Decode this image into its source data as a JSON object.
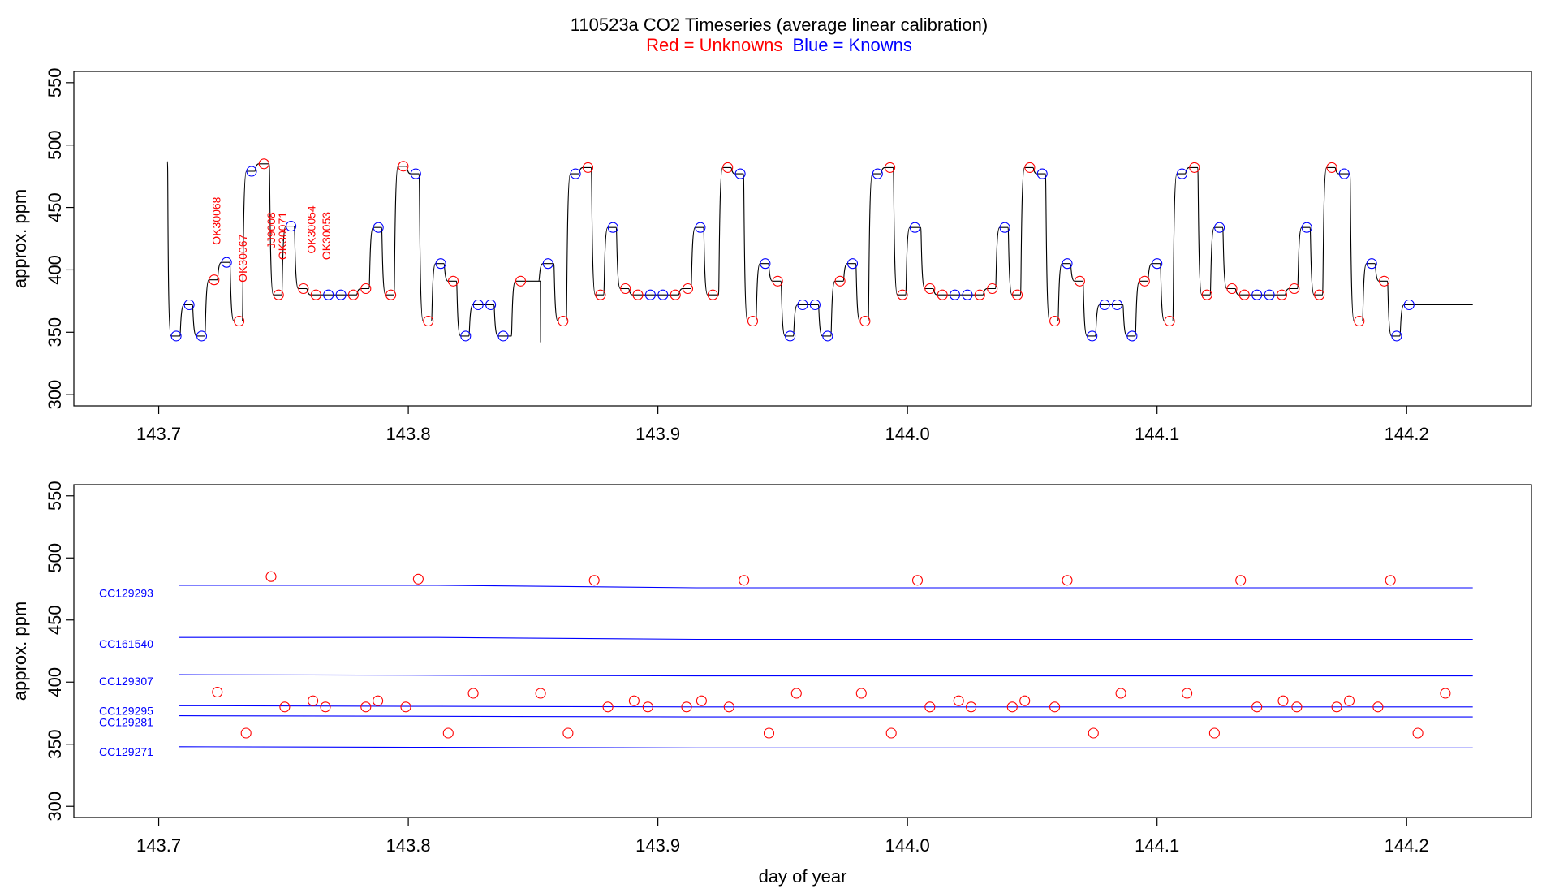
{
  "title": {
    "main": "110523a   CO2 Timeseries (average linear calibration)",
    "red_part": "Red = Unknowns",
    "blue_part": "Blue = Knowns"
  },
  "colors": {
    "unknown": "#ff0000",
    "known": "#0000ff",
    "trace": "#000000",
    "cal_line": "#0000ff"
  },
  "chart_data": [
    {
      "type": "line",
      "panel": "top",
      "ylabel": "approx. ppm",
      "xlabel": "",
      "xlim": [
        143.666,
        144.25
      ],
      "ylim": [
        291,
        559
      ],
      "xticks": [
        143.7,
        143.8,
        143.9,
        144.0,
        144.1,
        144.2
      ],
      "xtick_labels": [
        "143.7",
        "143.8",
        "143.9",
        "144.0",
        "144.1",
        "144.2"
      ],
      "yticks": [
        300,
        350,
        400,
        450,
        500,
        550
      ],
      "ytick_labels": [
        "300",
        "350",
        "400",
        "450",
        "500",
        "550"
      ],
      "trace_start": [
        143.7035,
        487
      ],
      "trace_dip": [
        143.8535,
        342
      ],
      "trace_end": 144.2265,
      "steps": [
        [
          143.7045,
          347,
          "K"
        ],
        [
          143.7097,
          372,
          "K"
        ],
        [
          143.7147,
          347,
          "K"
        ],
        [
          143.7197,
          392,
          "U"
        ],
        [
          143.7247,
          406,
          "K"
        ],
        [
          143.7297,
          359,
          "U"
        ],
        [
          143.7347,
          479,
          "K"
        ],
        [
          143.7397,
          485,
          "U"
        ],
        [
          143.7455,
          380,
          "U"
        ],
        [
          143.7505,
          435,
          "K"
        ],
        [
          143.7555,
          385,
          "U"
        ],
        [
          143.7605,
          380,
          "U"
        ],
        [
          143.7655,
          380,
          "K"
        ],
        [
          143.7705,
          380,
          "K"
        ],
        [
          143.7755,
          380,
          "U"
        ],
        [
          143.7805,
          385,
          "U"
        ],
        [
          143.7855,
          434,
          "K"
        ],
        [
          143.7905,
          380,
          "U"
        ],
        [
          143.7955,
          483,
          "U"
        ],
        [
          143.8005,
          477,
          "K"
        ],
        [
          143.8055,
          359,
          "U"
        ],
        [
          143.8105,
          405,
          "K"
        ],
        [
          143.8155,
          391,
          "U"
        ],
        [
          143.8205,
          347,
          "K"
        ],
        [
          143.8255,
          372,
          "K"
        ],
        [
          143.8305,
          372,
          "K"
        ],
        [
          143.8355,
          347,
          "K"
        ],
        [
          143.8425,
          391,
          "U"
        ],
        [
          143.8535,
          405,
          "K"
        ],
        [
          143.8595,
          359,
          "U"
        ],
        [
          143.8645,
          477,
          "K"
        ],
        [
          143.8695,
          482,
          "U"
        ],
        [
          143.8745,
          380,
          "U"
        ],
        [
          143.8795,
          434,
          "K"
        ],
        [
          143.8845,
          385,
          "U"
        ],
        [
          143.8895,
          380,
          "U"
        ],
        [
          143.8945,
          380,
          "K"
        ],
        [
          143.8995,
          380,
          "K"
        ],
        [
          143.9045,
          380,
          "U"
        ],
        [
          143.9095,
          385,
          "U"
        ],
        [
          143.9145,
          434,
          "K"
        ],
        [
          143.9195,
          380,
          "U"
        ],
        [
          143.9255,
          482,
          "U"
        ],
        [
          143.9305,
          477,
          "K"
        ],
        [
          143.9355,
          359,
          "U"
        ],
        [
          143.9405,
          405,
          "K"
        ],
        [
          143.9455,
          391,
          "U"
        ],
        [
          143.9505,
          347,
          "K"
        ],
        [
          143.9555,
          372,
          "K"
        ],
        [
          143.9605,
          372,
          "K"
        ],
        [
          143.9655,
          347,
          "K"
        ],
        [
          143.9705,
          391,
          "U"
        ],
        [
          143.9755,
          405,
          "K"
        ],
        [
          143.9805,
          359,
          "U"
        ],
        [
          143.9855,
          477,
          "K"
        ],
        [
          143.9905,
          482,
          "U"
        ],
        [
          143.9955,
          380,
          "U"
        ],
        [
          144.0005,
          434,
          "K"
        ],
        [
          144.0065,
          385,
          "U"
        ],
        [
          144.0115,
          380,
          "U"
        ],
        [
          144.0165,
          380,
          "K"
        ],
        [
          144.0215,
          380,
          "K"
        ],
        [
          144.0265,
          380,
          "U"
        ],
        [
          144.0315,
          385,
          "U"
        ],
        [
          144.0365,
          434,
          "K"
        ],
        [
          144.0415,
          380,
          "U"
        ],
        [
          144.0465,
          482,
          "U"
        ],
        [
          144.0515,
          477,
          "K"
        ],
        [
          144.0565,
          359,
          "U"
        ],
        [
          144.0615,
          405,
          "K"
        ],
        [
          144.0665,
          391,
          "U"
        ],
        [
          144.0715,
          347,
          "K"
        ],
        [
          144.0765,
          372,
          "K"
        ],
        [
          144.0815,
          372,
          "K"
        ],
        [
          144.0875,
          347,
          "K"
        ],
        [
          144.0925,
          391,
          "U"
        ],
        [
          144.0975,
          405,
          "K"
        ],
        [
          144.1025,
          359,
          "U"
        ],
        [
          144.1075,
          477,
          "K"
        ],
        [
          144.1125,
          482,
          "U"
        ],
        [
          144.1175,
          380,
          "U"
        ],
        [
          144.1225,
          434,
          "K"
        ],
        [
          144.1275,
          385,
          "U"
        ],
        [
          144.1325,
          380,
          "U"
        ],
        [
          144.1375,
          380,
          "K"
        ],
        [
          144.1425,
          380,
          "K"
        ],
        [
          144.1475,
          380,
          "U"
        ],
        [
          144.1525,
          385,
          "U"
        ],
        [
          144.1575,
          434,
          "K"
        ],
        [
          144.1625,
          380,
          "U"
        ],
        [
          144.1675,
          482,
          "U"
        ],
        [
          144.1725,
          477,
          "K"
        ],
        [
          144.1785,
          359,
          "U"
        ],
        [
          144.1835,
          405,
          "K"
        ],
        [
          144.1885,
          391,
          "U"
        ],
        [
          144.1935,
          347,
          "K"
        ],
        [
          144.1985,
          372,
          "K"
        ]
      ],
      "annotations": [
        {
          "text": "OK30068",
          "x": 143.7247,
          "y": 420
        },
        {
          "text": "OK30067",
          "x": 143.7353,
          "y": 390
        },
        {
          "text": "JJ9008",
          "x": 143.7466,
          "y": 417
        },
        {
          "text": "OK30071",
          "x": 143.7512,
          "y": 408
        },
        {
          "text": "OK30054",
          "x": 143.7628,
          "y": 413
        },
        {
          "text": "OK30053",
          "x": 143.7688,
          "y": 408
        }
      ]
    },
    {
      "type": "scatter",
      "panel": "bottom",
      "ylabel": "approx. ppm",
      "xlabel": "day of year",
      "xlim": [
        143.666,
        144.25
      ],
      "ylim": [
        291,
        559
      ],
      "xticks": [
        143.7,
        143.8,
        143.9,
        144.0,
        144.1,
        144.2
      ],
      "xtick_labels": [
        "143.7",
        "143.8",
        "143.9",
        "144.0",
        "144.1",
        "144.2"
      ],
      "yticks": [
        300,
        350,
        400,
        450,
        500,
        550
      ],
      "ytick_labels": [
        "300",
        "350",
        "400",
        "450",
        "500",
        "550"
      ],
      "cal_lines": [
        {
          "name": "CC129293",
          "label_y": 471,
          "x0": 143.708,
          "x1": 144.2265,
          "y": [
            478,
            478,
            476,
            476,
            476,
            476
          ]
        },
        {
          "name": "CC161540",
          "label_y": 430,
          "x0": 143.708,
          "x1": 144.2265,
          "y": [
            436,
            436,
            434.5,
            434.5,
            434.5,
            434.5
          ]
        },
        {
          "name": "CC129307",
          "label_y": 400,
          "x0": 143.708,
          "x1": 144.2265,
          "y": [
            406,
            405.5,
            405,
            405,
            405,
            405
          ]
        },
        {
          "name": "CC129295",
          "label_y": 376,
          "x0": 143.708,
          "x1": 144.2265,
          "y": [
            381,
            380.5,
            380,
            380,
            380,
            380
          ]
        },
        {
          "name": "CC129281",
          "label_y": 367,
          "x0": 143.708,
          "x1": 144.2265,
          "y": [
            373,
            372.5,
            372,
            372,
            372,
            372
          ]
        },
        {
          "name": "CC129271",
          "label_y": 343,
          "x0": 143.708,
          "x1": 144.2265,
          "y": [
            348,
            347.5,
            347,
            347,
            347,
            347
          ]
        }
      ],
      "unknowns": [
        [
          143.7235,
          392
        ],
        [
          143.735,
          359
        ],
        [
          143.745,
          485
        ],
        [
          143.7505,
          380
        ],
        [
          143.7618,
          385
        ],
        [
          143.7668,
          380
        ],
        [
          143.783,
          380
        ],
        [
          143.7878,
          385
        ],
        [
          143.799,
          380
        ],
        [
          143.804,
          483
        ],
        [
          143.816,
          359
        ],
        [
          143.826,
          391
        ],
        [
          143.853,
          391
        ],
        [
          143.864,
          359
        ],
        [
          143.8745,
          482
        ],
        [
          143.88,
          380
        ],
        [
          143.8905,
          385
        ],
        [
          143.896,
          380
        ],
        [
          143.9115,
          380
        ],
        [
          143.9175,
          385
        ],
        [
          143.9285,
          380
        ],
        [
          143.9345,
          482
        ],
        [
          143.9445,
          359
        ],
        [
          143.9555,
          391
        ],
        [
          143.9815,
          391
        ],
        [
          143.9935,
          359
        ],
        [
          144.004,
          482
        ],
        [
          144.009,
          380
        ],
        [
          144.0205,
          385
        ],
        [
          144.0255,
          380
        ],
        [
          144.042,
          380
        ],
        [
          144.047,
          385
        ],
        [
          144.059,
          380
        ],
        [
          144.064,
          482
        ],
        [
          144.0745,
          359
        ],
        [
          144.0855,
          391
        ],
        [
          144.112,
          391
        ],
        [
          144.123,
          359
        ],
        [
          144.1335,
          482
        ],
        [
          144.14,
          380
        ],
        [
          144.1505,
          385
        ],
        [
          144.156,
          380
        ],
        [
          144.172,
          380
        ],
        [
          144.177,
          385
        ],
        [
          144.1885,
          380
        ],
        [
          144.1935,
          482
        ],
        [
          144.2045,
          359
        ],
        [
          144.2155,
          391
        ]
      ]
    }
  ]
}
